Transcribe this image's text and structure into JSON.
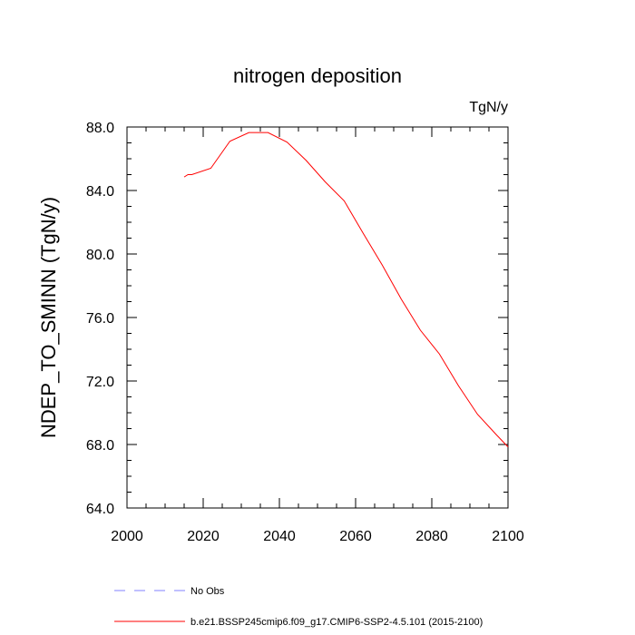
{
  "chart_data": {
    "type": "line",
    "title": "nitrogen deposition",
    "units_label": "TgN/y",
    "xlabel": "",
    "ylabel": "NDEP_TO_SMINN  (TgN/y)",
    "xlim": [
      2000,
      2100
    ],
    "ylim": [
      64,
      88
    ],
    "x_ticks": [
      2000,
      2020,
      2040,
      2060,
      2080,
      2100
    ],
    "x_tick_labels": [
      "2000",
      "2020",
      "2040",
      "2060",
      "2080",
      "2100"
    ],
    "y_ticks": [
      64,
      68,
      72,
      76,
      80,
      84,
      88
    ],
    "y_tick_labels": [
      "64.0",
      "68.0",
      "72.0",
      "76.0",
      "80.0",
      "84.0",
      "88.0"
    ],
    "grid": false,
    "series": [
      {
        "name": "b.e21.BSSP245cmip6.f09_g17.CMIP6-SSP2-4.5.101 (2015-2100)",
        "color": "#ff0000",
        "dash": "solid",
        "x": [
          2015,
          2016,
          2017,
          2022,
          2027,
          2032,
          2037,
          2042,
          2047,
          2052,
          2057,
          2062,
          2067,
          2072,
          2077,
          2082,
          2087,
          2092,
          2097,
          2100
        ],
        "y": [
          84.85,
          85.0,
          85.0,
          85.4,
          87.1,
          87.65,
          87.65,
          87.05,
          85.9,
          84.55,
          83.35,
          81.3,
          79.3,
          77.15,
          75.2,
          73.7,
          71.7,
          69.9,
          68.6,
          67.85
        ]
      }
    ],
    "legend": [
      {
        "label": "No Obs",
        "color": "#8080ff",
        "dash": "dashed"
      },
      {
        "label": "b.e21.BSSP245cmip6.f09_g17.CMIP6-SSP2-4.5.101 (2015-2100)",
        "color": "#ff0000",
        "dash": "solid"
      }
    ],
    "legend_position": "bottom"
  }
}
